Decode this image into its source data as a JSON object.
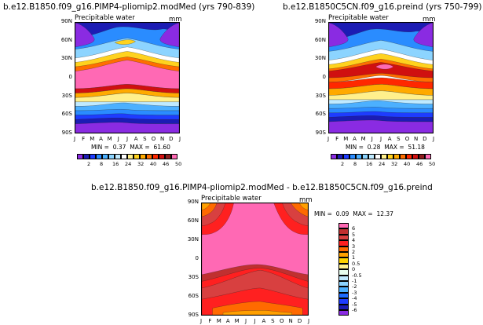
{
  "chart_data": [
    {
      "type": "heatmap",
      "title": "b.e12.B1850.f09_g16.PIMP4-pliomip2.modMed (yrs 790-839)",
      "subtitle": "Precipitable water",
      "units": "mm",
      "x_ticks": [
        "J",
        "F",
        "M",
        "A",
        "M",
        "J",
        "J",
        "A",
        "S",
        "O",
        "N",
        "D",
        "J"
      ],
      "y_ticks": [
        "90N",
        "60N",
        "30N",
        "0",
        "30S",
        "60S",
        "90S"
      ],
      "min_text": "MIN =",
      "min_value": "0.37",
      "max_text": "MAX =",
      "max_value": "61.60",
      "legend_labels": [
        "2",
        "8",
        "16",
        "24",
        "32",
        "40",
        "46",
        "50"
      ],
      "colors": [
        "#8a2be2",
        "#1c1cb4",
        "#1e3cff",
        "#2a8cff",
        "#4cb0ff",
        "#8cd4ff",
        "#bfeaff",
        "#ffffff",
        "#fff08c",
        "#ffd21e",
        "#ffaa00",
        "#ff6e00",
        "#ff2800",
        "#d01010",
        "#8c1c1c",
        "#ff69b4"
      ]
    },
    {
      "type": "heatmap",
      "title": "b.e12.B1850C5CN.f09_g16.preind (yrs 750-799)",
      "subtitle": "Precipitable water",
      "units": "mm",
      "x_ticks": [
        "J",
        "F",
        "M",
        "A",
        "M",
        "J",
        "J",
        "A",
        "S",
        "O",
        "N",
        "D",
        "J"
      ],
      "y_ticks": [
        "90N",
        "60N",
        "30N",
        "0",
        "30S",
        "60S",
        "90S"
      ],
      "min_text": "MIN =",
      "min_value": "0.28",
      "max_text": "MAX =",
      "max_value": "51.18",
      "legend_labels": [
        "2",
        "8",
        "16",
        "24",
        "32",
        "40",
        "46",
        "50"
      ],
      "colors": [
        "#8a2be2",
        "#1c1cb4",
        "#1e3cff",
        "#2a8cff",
        "#4cb0ff",
        "#8cd4ff",
        "#bfeaff",
        "#ffffff",
        "#fff08c",
        "#ffd21e",
        "#ffaa00",
        "#ff6e00",
        "#ff2800",
        "#d01010",
        "#8c1c1c",
        "#ff69b4"
      ]
    },
    {
      "type": "heatmap",
      "title": "b.e12.B1850.f09_g16.PIMP4-pliomip2.modMed - b.e12.B1850C5CN.f09_g16.preind",
      "subtitle": "Precipitable water",
      "units": "mm",
      "x_ticks": [
        "J",
        "F",
        "M",
        "A",
        "M",
        "J",
        "J",
        "A",
        "S",
        "O",
        "N",
        "D",
        "J"
      ],
      "y_ticks": [
        "90N",
        "60N",
        "30N",
        "0",
        "30S",
        "60S",
        "90S"
      ],
      "min_text": "MIN =",
      "min_value": "0.09",
      "max_text": "MAX =",
      "max_value": "12.37",
      "legend_labels": [
        "6",
        "5",
        "4",
        "3",
        "2",
        "1",
        "0.5",
        "0",
        "-0.5",
        "-1",
        "-2",
        "-3",
        "-4",
        "-5",
        "-6"
      ],
      "colors": [
        "#ff69b4",
        "#c03030",
        "#d84040",
        "#ff2020",
        "#ff6a00",
        "#ffa000",
        "#ffd200",
        "#fff08c",
        "#e8fff0",
        "#bfeaff",
        "#8cd4ff",
        "#4cb0ff",
        "#1e6cff",
        "#1e3cff",
        "#1c1cb4",
        "#8a2be2"
      ]
    }
  ]
}
